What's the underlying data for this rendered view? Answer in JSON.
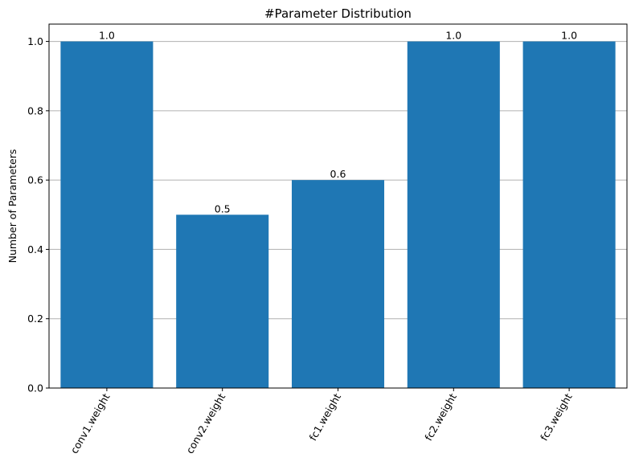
{
  "chart_data": {
    "type": "bar",
    "title": "#Parameter Distribution",
    "xlabel": "",
    "ylabel": "Number of Parameters",
    "categories": [
      "conv1.weight",
      "conv2.weight",
      "fc1.weight",
      "fc2.weight",
      "fc3.weight"
    ],
    "values": [
      1.0,
      0.5,
      0.6,
      1.0,
      1.0
    ],
    "data_labels": [
      "1.0",
      "0.5",
      "0.6",
      "1.0",
      "1.0"
    ],
    "ylim": [
      0,
      1.05
    ],
    "yticks": [
      0.0,
      0.2,
      0.4,
      0.6,
      0.8,
      1.0
    ],
    "ytick_labels": [
      "0.0",
      "0.2",
      "0.4",
      "0.6",
      "0.8",
      "1.0"
    ],
    "grid": "y-axis horizontal lines",
    "legend": "none",
    "xtick_rotation": 60,
    "bar_color": "#1f77b4",
    "grid_color": "#b0b0b0"
  }
}
